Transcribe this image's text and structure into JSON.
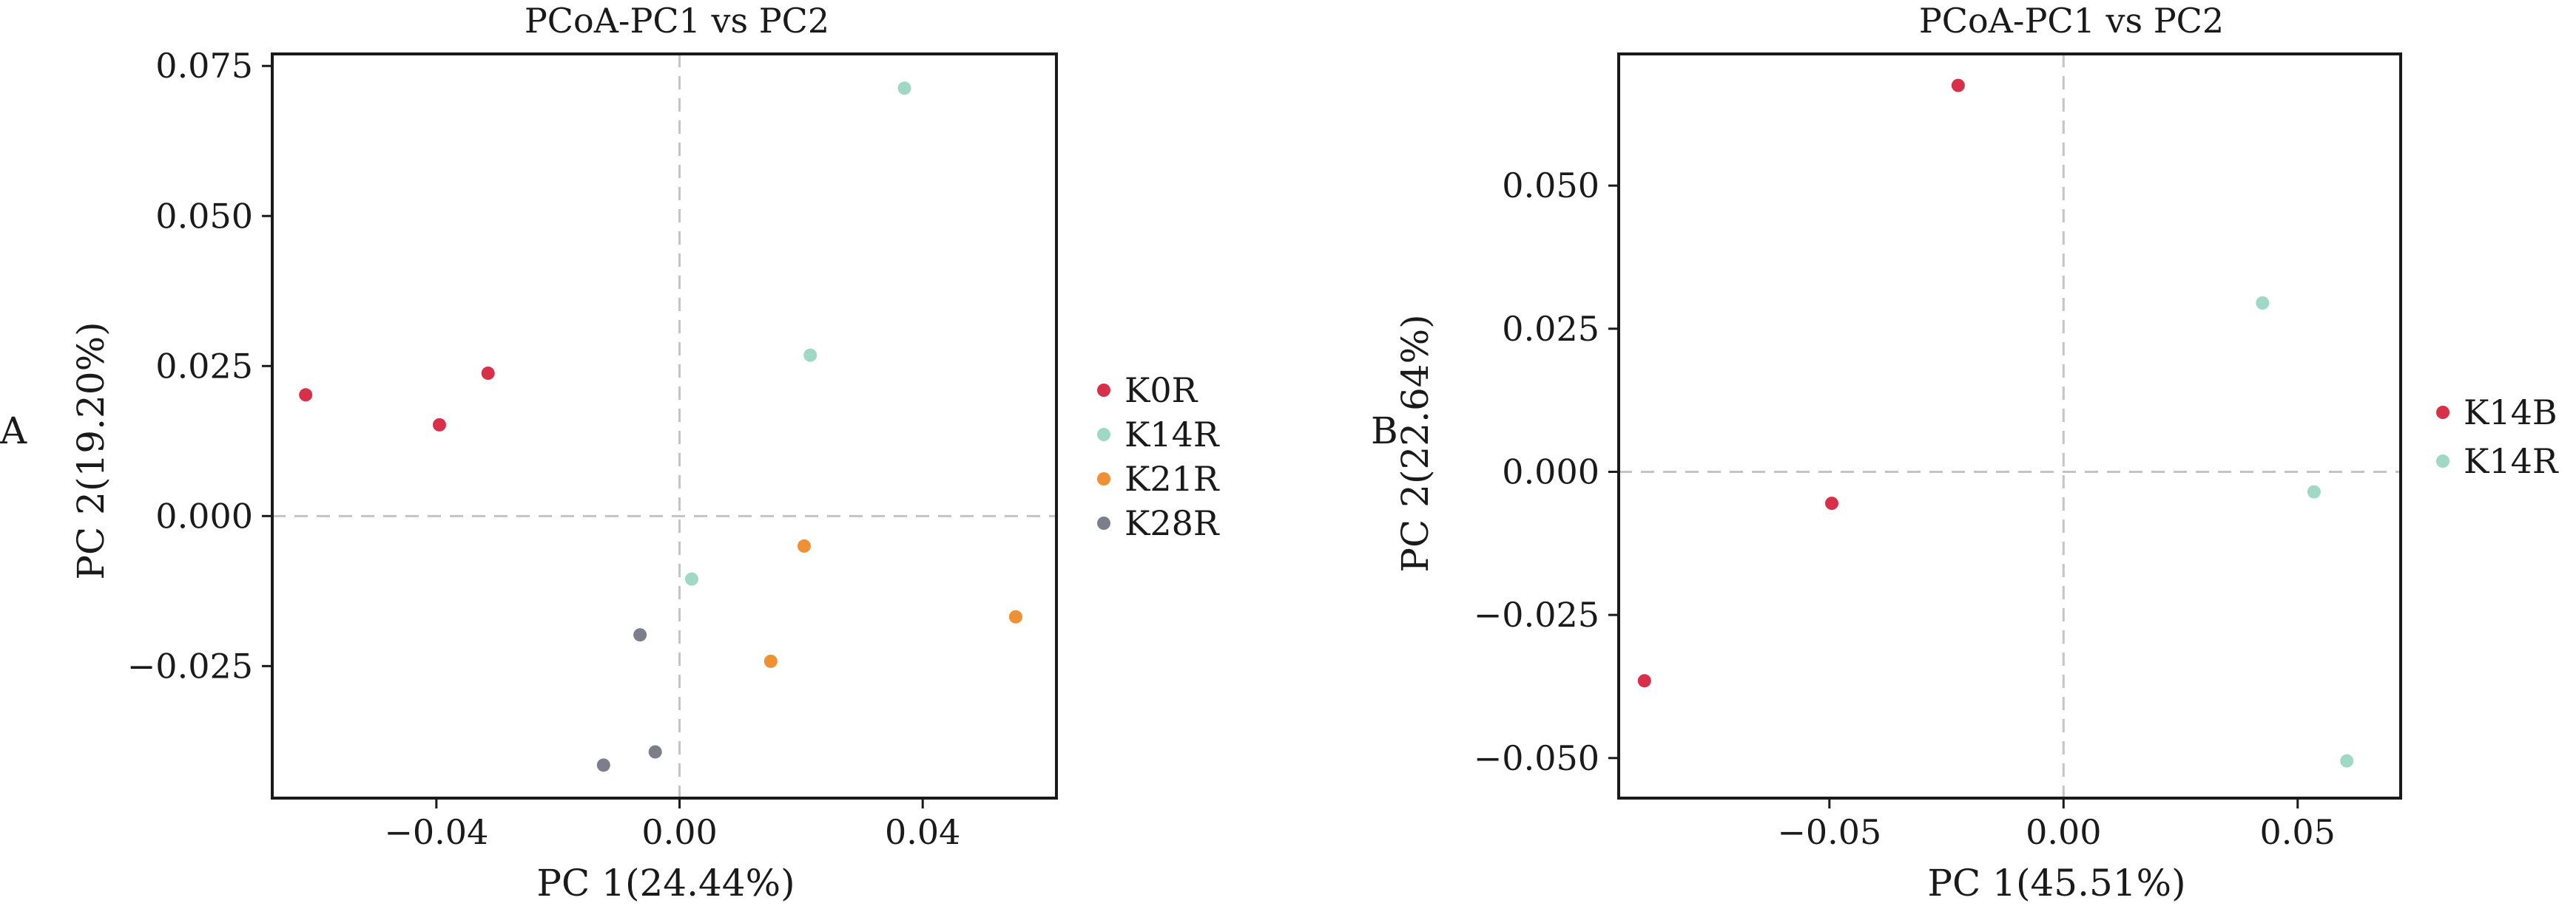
{
  "chart_data": [
    {
      "panel_label": "A",
      "type": "scatter",
      "title": "PCoA-PC1 vs PC2",
      "xlabel": "PC 1(24.44%)",
      "ylabel": "PC 2(19.20%)",
      "xlim": [
        -0.067,
        0.062
      ],
      "ylim": [
        -0.047,
        0.077
      ],
      "xticks": [
        -0.04,
        0.0,
        0.04
      ],
      "xtick_labels": [
        "−0.04",
        "0.00",
        "0.04"
      ],
      "yticks": [
        -0.025,
        0.0,
        0.025,
        0.05,
        0.075
      ],
      "ytick_labels": [
        "−0.025",
        "0.000",
        "0.025",
        "0.050",
        "0.075"
      ],
      "reference_lines": {
        "x": 0,
        "y": 0
      },
      "grid": false,
      "legend_position": "right",
      "series": [
        {
          "name": "K0R",
          "color": "#d9304a",
          "points": [
            [
              -0.0615,
              0.0202
            ],
            [
              -0.0395,
              0.0152
            ],
            [
              -0.0315,
              0.0238
            ]
          ]
        },
        {
          "name": "K14R",
          "color": "#9fd9c6",
          "points": [
            [
              0.037,
              0.0713
            ],
            [
              0.0215,
              0.0268
            ],
            [
              0.002,
              -0.0105
            ]
          ]
        },
        {
          "name": "K21R",
          "color": "#ee9033",
          "points": [
            [
              0.0205,
              -0.005
            ],
            [
              0.015,
              -0.0242
            ],
            [
              0.0553,
              -0.0168
            ]
          ]
        },
        {
          "name": "K28R",
          "color": "#7d7e8c",
          "points": [
            [
              -0.0065,
              -0.0198
            ],
            [
              -0.004,
              -0.0393
            ],
            [
              -0.0125,
              -0.0415
            ]
          ]
        }
      ]
    },
    {
      "panel_label": "B",
      "type": "scatter",
      "title": "PCoA-PC1 vs PC2",
      "xlabel": "PC 1(45.51%)",
      "ylabel": "PC 2(22.64%)",
      "xlim": [
        -0.095,
        0.072
      ],
      "ylim": [
        -0.057,
        0.073
      ],
      "xticks": [
        -0.05,
        0.0,
        0.05
      ],
      "xtick_labels": [
        "−0.05",
        "0.00",
        "0.05"
      ],
      "yticks": [
        -0.05,
        -0.025,
        0.0,
        0.025,
        0.05
      ],
      "ytick_labels": [
        "−0.050",
        "−0.025",
        "0.000",
        "0.025",
        "0.050"
      ],
      "reference_lines": {
        "x": 0,
        "y": 0
      },
      "grid": false,
      "legend_position": "right",
      "series": [
        {
          "name": "K14B",
          "color": "#d9304a",
          "points": [
            [
              -0.0225,
              0.0675
            ],
            [
              -0.0495,
              -0.0055
            ],
            [
              -0.0895,
              -0.0365
            ]
          ]
        },
        {
          "name": "K14R",
          "color": "#9fd9c6",
          "points": [
            [
              0.0425,
              0.0295
            ],
            [
              0.0535,
              -0.0035
            ],
            [
              0.0605,
              -0.0505
            ]
          ]
        }
      ]
    }
  ]
}
